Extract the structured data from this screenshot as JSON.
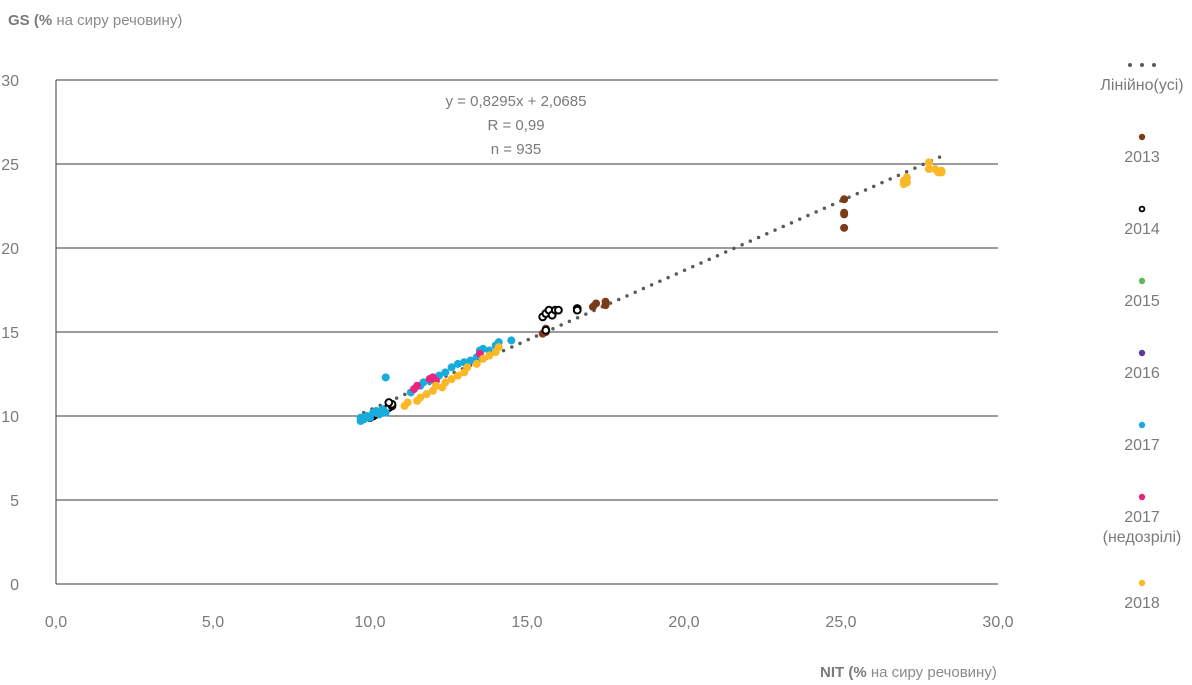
{
  "y_axis_title": {
    "bold": "GS (%",
    "rest": " на сиру речовину)"
  },
  "x_axis_title": {
    "bold": "NIT (%",
    "rest": " на сиру речовину)"
  },
  "annotation": {
    "equation": "y = 0,8295x + 2,0685",
    "r": "R = 0,99",
    "n": "n = 935"
  },
  "chart_data": {
    "type": "scatter",
    "xlabel": "NIT (% на сиру речовину)",
    "ylabel": "GS (% на сиру речовину)",
    "xlim": [
      0,
      30
    ],
    "ylim": [
      0,
      30
    ],
    "x_ticks": [
      0,
      5,
      10,
      15,
      20,
      25,
      30
    ],
    "x_tick_labels": [
      "0,0",
      "5,0",
      "10,0",
      "15,0",
      "20,0",
      "25,0",
      "30,0"
    ],
    "y_ticks": [
      0,
      5,
      10,
      15,
      20,
      25,
      30
    ],
    "y_tick_labels": [
      "0",
      "5",
      "10",
      "15",
      "20",
      "25",
      "30"
    ],
    "grid": "horizontal",
    "legend_position": "right",
    "trendline": {
      "name": "Лінійно(усі)",
      "slope": 0.8295,
      "intercept": 2.0685,
      "x_range": [
        9.8,
        28.2
      ],
      "color": "#5a5a5a",
      "style": "dotted"
    },
    "series": [
      {
        "name": "2013",
        "color": "#7b3b16",
        "marker": "filled",
        "points": [
          [
            15.5,
            14.9
          ],
          [
            15.6,
            15.0
          ],
          [
            15.6,
            15.2
          ],
          [
            17.1,
            16.5
          ],
          [
            17.2,
            16.7
          ],
          [
            17.5,
            16.6
          ],
          [
            17.5,
            16.8
          ],
          [
            25.1,
            22.9
          ],
          [
            25.1,
            22.1
          ],
          [
            25.1,
            22.0
          ],
          [
            25.1,
            21.2
          ]
        ]
      },
      {
        "name": "2014",
        "color": "#000000",
        "marker": "hollow",
        "points": [
          [
            10.0,
            9.9
          ],
          [
            10.1,
            10.0
          ],
          [
            10.2,
            10.1
          ],
          [
            10.3,
            10.2
          ],
          [
            10.4,
            10.3
          ],
          [
            10.5,
            10.4
          ],
          [
            10.6,
            10.5
          ],
          [
            10.7,
            10.6
          ],
          [
            10.7,
            10.7
          ],
          [
            10.6,
            10.8
          ],
          [
            15.5,
            15.9
          ],
          [
            15.6,
            16.1
          ],
          [
            15.7,
            16.3
          ],
          [
            15.8,
            16.0
          ],
          [
            15.9,
            16.3
          ],
          [
            16.0,
            16.3
          ],
          [
            16.6,
            16.4
          ],
          [
            16.6,
            16.3
          ],
          [
            15.6,
            15.1
          ]
        ]
      },
      {
        "name": "2015",
        "color": "#5cb85c",
        "marker": "filled",
        "points": []
      },
      {
        "name": "2016",
        "color": "#5b3a9a",
        "marker": "filled",
        "points": []
      },
      {
        "name": "2017",
        "color": "#1aabdd",
        "marker": "filled",
        "points": [
          [
            9.7,
            9.7
          ],
          [
            9.7,
            9.9
          ],
          [
            9.8,
            9.8
          ],
          [
            9.9,
            10.0
          ],
          [
            10.0,
            9.9
          ],
          [
            10.1,
            10.2
          ],
          [
            10.2,
            10.3
          ],
          [
            10.3,
            10.1
          ],
          [
            10.4,
            10.4
          ],
          [
            10.5,
            10.2
          ],
          [
            10.5,
            12.3
          ],
          [
            11.3,
            11.4
          ],
          [
            11.6,
            11.8
          ],
          [
            11.7,
            12.0
          ],
          [
            11.9,
            12.1
          ],
          [
            12.2,
            12.4
          ],
          [
            12.4,
            12.6
          ],
          [
            12.6,
            12.9
          ],
          [
            12.8,
            13.1
          ],
          [
            13.0,
            13.2
          ],
          [
            13.2,
            13.3
          ],
          [
            13.4,
            13.5
          ],
          [
            13.5,
            13.9
          ],
          [
            13.6,
            14.0
          ],
          [
            13.8,
            13.9
          ],
          [
            14.0,
            14.2
          ],
          [
            14.1,
            14.4
          ],
          [
            14.5,
            14.5
          ]
        ]
      },
      {
        "name": "2017 (недозрілі)",
        "color": "#e8257d",
        "marker": "filled",
        "points": [
          [
            11.4,
            11.6
          ],
          [
            11.5,
            11.8
          ],
          [
            11.9,
            12.2
          ],
          [
            12.0,
            12.3
          ],
          [
            12.1,
            12.1
          ],
          [
            13.5,
            13.7
          ]
        ]
      },
      {
        "name": "2018",
        "color": "#fbb826",
        "marker": "filled",
        "points": [
          [
            11.1,
            10.6
          ],
          [
            11.2,
            10.8
          ],
          [
            11.5,
            10.9
          ],
          [
            11.6,
            11.1
          ],
          [
            11.8,
            11.3
          ],
          [
            12.0,
            11.5
          ],
          [
            12.1,
            11.8
          ],
          [
            12.3,
            11.7
          ],
          [
            12.4,
            12.0
          ],
          [
            12.6,
            12.2
          ],
          [
            12.8,
            12.4
          ],
          [
            13.0,
            12.6
          ],
          [
            13.1,
            12.9
          ],
          [
            13.4,
            13.1
          ],
          [
            13.6,
            13.4
          ],
          [
            13.8,
            13.6
          ],
          [
            14.0,
            13.8
          ],
          [
            14.1,
            14.1
          ],
          [
            27.0,
            24.0
          ],
          [
            27.0,
            23.8
          ],
          [
            27.1,
            24.2
          ],
          [
            27.1,
            23.9
          ],
          [
            27.8,
            24.7
          ],
          [
            27.8,
            25.1
          ],
          [
            28.0,
            24.7
          ],
          [
            28.1,
            24.5
          ],
          [
            28.2,
            24.5
          ],
          [
            28.2,
            24.6
          ]
        ]
      }
    ]
  }
}
